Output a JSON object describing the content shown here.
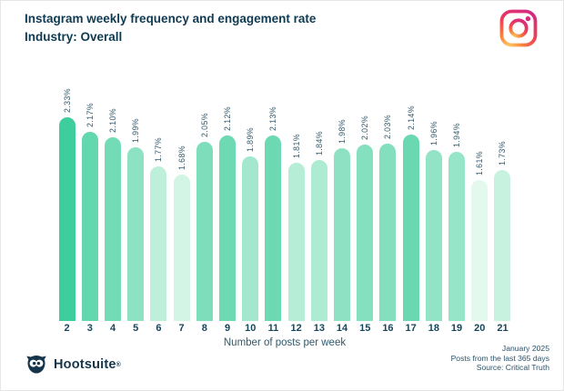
{
  "header": {
    "title": "Instagram weekly frequency and engagement rate",
    "subtitle": "Industry: Overall"
  },
  "chart_data": {
    "type": "bar",
    "title": "Instagram weekly frequency and engagement rate",
    "subtitle": "Industry: Overall",
    "categories": [
      "2",
      "3",
      "4",
      "5",
      "6",
      "7",
      "8",
      "9",
      "10",
      "11",
      "12",
      "13",
      "14",
      "15",
      "16",
      "17",
      "18",
      "19",
      "20",
      "21"
    ],
    "values": [
      2.33,
      2.17,
      2.1,
      1.99,
      1.77,
      1.68,
      2.05,
      2.12,
      1.89,
      2.13,
      1.81,
      1.84,
      1.98,
      2.02,
      2.03,
      2.14,
      1.96,
      1.94,
      1.61,
      1.73
    ],
    "value_labels": [
      "2.33%",
      "2.17%",
      "2.10%",
      "1.99%",
      "1.77%",
      "1.68%",
      "2.05%",
      "2.12%",
      "1.89%",
      "2.13%",
      "1.81%",
      "1.84%",
      "1.98%",
      "2.02%",
      "2.03%",
      "2.14%",
      "1.96%",
      "1.94%",
      "1.61%",
      "1.73%"
    ],
    "xlabel": "Number of posts per week",
    "ylabel": "",
    "ylim": [
      0,
      2.4
    ],
    "grid": false,
    "legend": "none",
    "bar_color_scale": {
      "min_value": 1.61,
      "max_value": 2.33,
      "min_color": "#E3F9ED",
      "max_color": "#3ECD9C"
    }
  },
  "footer": {
    "brand": "Hootsuite",
    "brand_mark": "®",
    "meta_lines": [
      "January 2025",
      "Posts from the last 365 days",
      "Source: Critical Truth"
    ]
  },
  "colors": {
    "title_text": "#0E3A52",
    "tick_text": "#16455C",
    "value_text": "#32596B",
    "background": "#FFFFFF"
  }
}
